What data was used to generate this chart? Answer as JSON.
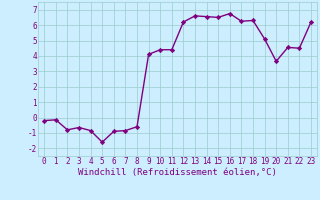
{
  "x": [
    0,
    1,
    2,
    3,
    4,
    5,
    6,
    7,
    8,
    9,
    10,
    11,
    12,
    13,
    14,
    15,
    16,
    17,
    18,
    19,
    20,
    21,
    22,
    23
  ],
  "y": [
    -0.2,
    -0.15,
    -0.8,
    -0.65,
    -0.85,
    -1.6,
    -0.9,
    -0.85,
    -0.6,
    4.1,
    4.4,
    4.4,
    6.2,
    6.6,
    6.55,
    6.5,
    6.75,
    6.25,
    6.3,
    5.1,
    3.65,
    4.55,
    4.5,
    6.2
  ],
  "line_color": "#800080",
  "marker": "D",
  "marker_size": 2.2,
  "marker_linewidth": 0.5,
  "line_width": 1.0,
  "bg_color": "#cceeff",
  "grid_color": "#99cccc",
  "xlabel": "Windchill (Refroidissement éolien,°C)",
  "xlim": [
    -0.5,
    23.5
  ],
  "ylim": [
    -2.5,
    7.5
  ],
  "yticks": [
    -2,
    -1,
    0,
    1,
    2,
    3,
    4,
    5,
    6,
    7
  ],
  "xticks": [
    0,
    1,
    2,
    3,
    4,
    5,
    6,
    7,
    8,
    9,
    10,
    11,
    12,
    13,
    14,
    15,
    16,
    17,
    18,
    19,
    20,
    21,
    22,
    23
  ],
  "tick_label_fontsize": 5.5,
  "xlabel_fontsize": 6.5,
  "label_color": "#800080"
}
